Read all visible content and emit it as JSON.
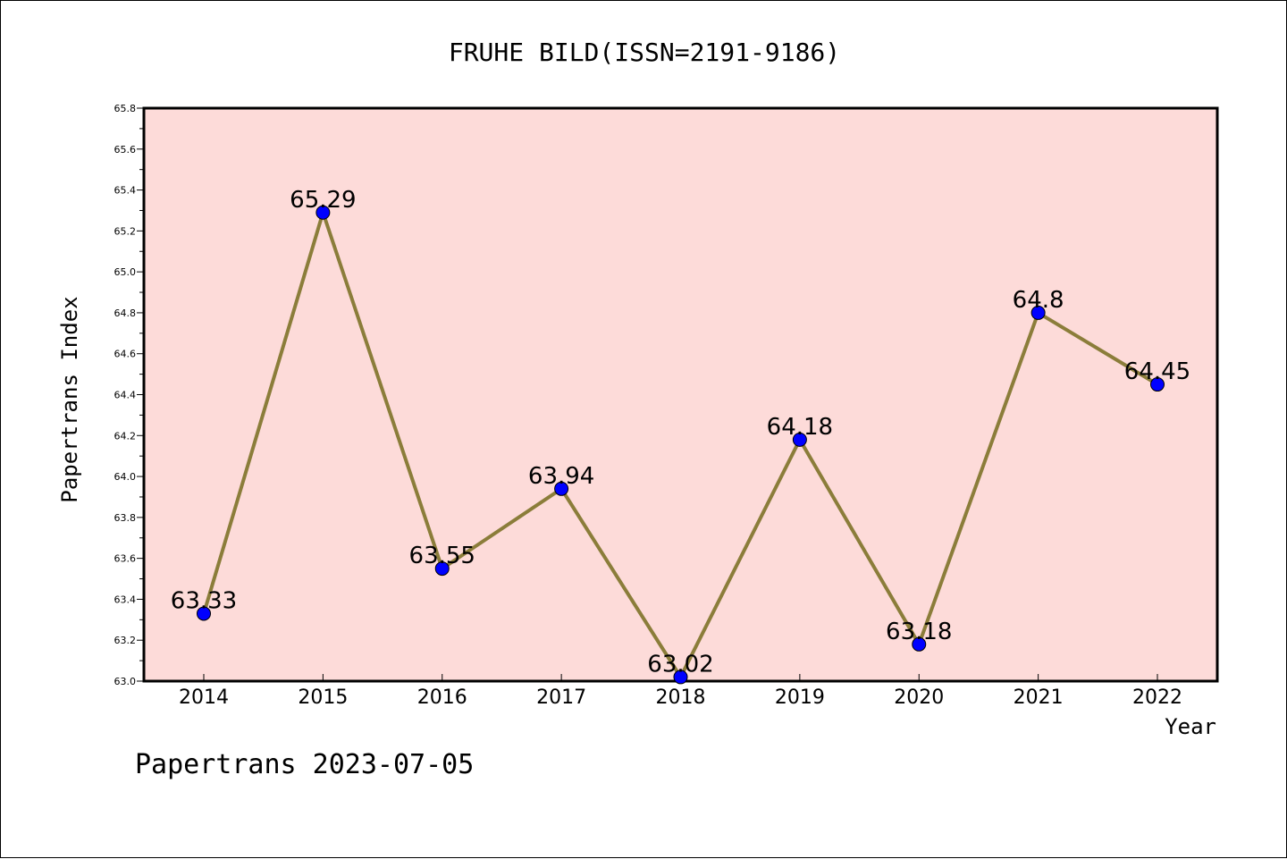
{
  "chart_data": {
    "type": "line",
    "title": "FRUHE BILD(ISSN=2191-9186)",
    "xlabel": "Year",
    "ylabel": "Papertrans Index",
    "footer": "Papertrans 2023-07-05",
    "categories": [
      "2014",
      "2015",
      "2016",
      "2017",
      "2018",
      "2019",
      "2020",
      "2021",
      "2022"
    ],
    "series": [
      {
        "values": [
          63.33,
          65.29,
          63.55,
          63.94,
          63.02,
          64.18,
          63.18,
          64.8,
          64.45
        ],
        "data_labels": [
          "63.33",
          "65.29",
          "63.55",
          "63.94",
          "63.02",
          "64.18",
          "63.18",
          "64.8",
          "64.45"
        ]
      }
    ],
    "ylim": [
      63.0,
      65.8
    ],
    "yticks": [
      "63.0",
      "63.2",
      "63.4",
      "63.6",
      "63.8",
      "64.0",
      "64.2",
      "64.4",
      "64.6",
      "64.8",
      "65.0",
      "65.2",
      "65.4",
      "65.6",
      "65.8"
    ],
    "grid": false,
    "colors": {
      "plot_background": "#fddbd9",
      "line": "#8b7d3a",
      "marker": "#0000ff"
    }
  }
}
